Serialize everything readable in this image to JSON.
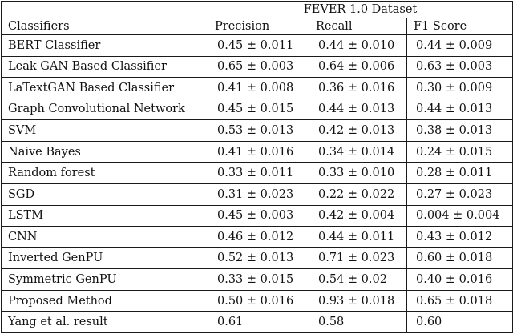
{
  "table": {
    "group_header": "FEVER 1.0 Dataset",
    "columns": [
      "Classifiers",
      "Precision",
      "Recall",
      "F1 Score"
    ],
    "rows": [
      {
        "name": "BERT Classifier",
        "precision": "0.45 ± 0.011",
        "recall": "0.44 ± 0.010",
        "f1": "0.44 ± 0.009"
      },
      {
        "name": "Leak GAN Based Classifier",
        "precision": "0.65 ± 0.003",
        "recall": "0.64 ± 0.006",
        "f1": "0.63 ± 0.003"
      },
      {
        "name": "LaTextGAN Based Classifier",
        "precision": "0.41 ± 0.008",
        "recall": "0.36 ± 0.016",
        "f1": "0.30 ± 0.009"
      },
      {
        "name": "Graph Convolutional Network",
        "precision": "0.45 ± 0.015",
        "recall": "0.44 ± 0.013",
        "f1": "0.44 ± 0.013"
      },
      {
        "name": "SVM",
        "precision": "0.53 ± 0.013",
        "recall": "0.42 ± 0.013",
        "f1": "0.38 ± 0.013"
      },
      {
        "name": "Naive Bayes",
        "precision": "0.41 ± 0.016",
        "recall": "0.34 ± 0.014",
        "f1": "0.24 ± 0.015"
      },
      {
        "name": "Random forest",
        "precision": "0.33 ± 0.011",
        "recall": "0.33 ± 0.010",
        "f1": "0.28 ± 0.011"
      },
      {
        "name": "SGD",
        "precision": "0.31 ± 0.023",
        "recall": "0.22 ± 0.022",
        "f1": "0.27 ± 0.023"
      },
      {
        "name": "LSTM",
        "precision": "0.45 ± 0.003",
        "recall": "0.42 ± 0.004",
        "f1": "0.004 ± 0.004"
      },
      {
        "name": "CNN",
        "precision": "0.46 ± 0.012",
        "recall": "0.44 ± 0.011",
        "f1": "0.43 ± 0.012"
      },
      {
        "name": "Inverted GenPU",
        "precision": "0.52 ± 0.013",
        "recall": "0.71 ± 0.023",
        "f1": "0.60 ± 0.018"
      },
      {
        "name": "Symmetric GenPU",
        "precision": "0.33 ± 0.015",
        "recall": "0.54 ± 0.02",
        "f1": "0.40 ± 0.016"
      },
      {
        "name": "Proposed Method",
        "precision": "0.50 ± 0.016",
        "recall": "0.93 ± 0.018",
        "f1": "0.65 ± 0.018"
      },
      {
        "name": "Yang et al. result",
        "precision": "0.61",
        "recall": "0.58",
        "f1": "0.60"
      }
    ]
  }
}
